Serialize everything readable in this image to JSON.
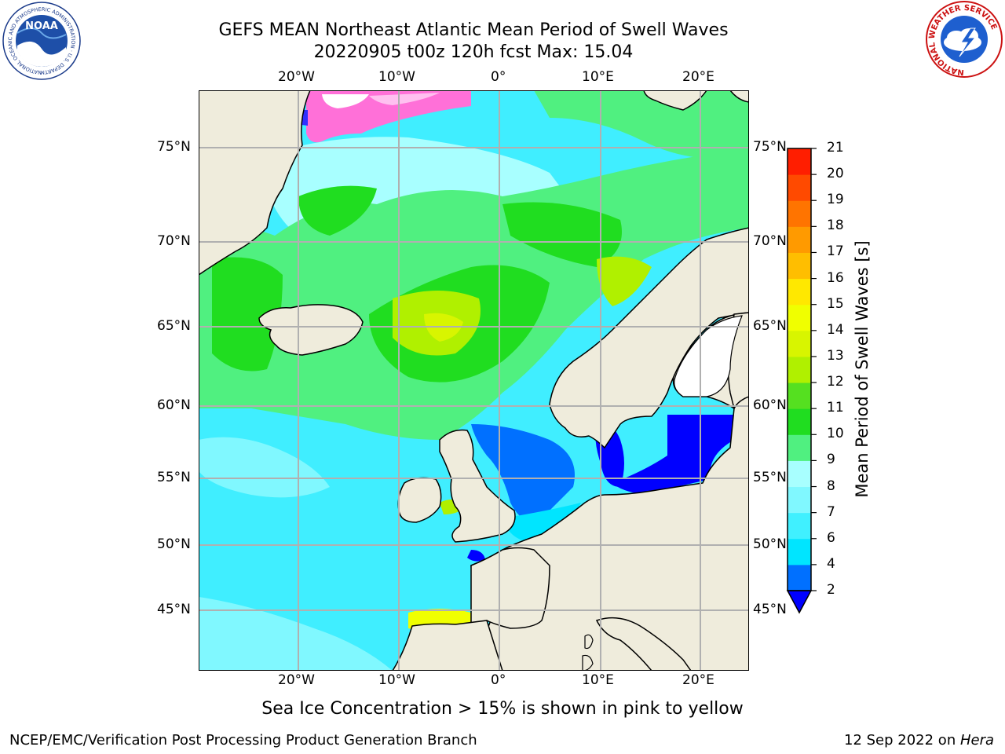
{
  "header": {
    "title_line1": "GEFS MEAN Northeast Atlantic Mean Period of Swell Waves",
    "title_line2": "20220905 t00z 120h fcst   Max: 15.04"
  },
  "logos": {
    "left": {
      "name": "noaa-logo",
      "text": "NOAA",
      "ring_text": "NATIONAL OCEANIC AND ATMOSPHERIC ADMINISTRATION · U.S. DEPARTMENT OF COMMERCE"
    },
    "right": {
      "name": "nws-logo",
      "ring_text": "NATIONAL WEATHER SERVICE"
    }
  },
  "map": {
    "lon_labels": [
      "20°W",
      "10°W",
      "0°",
      "10°E",
      "20°E"
    ],
    "lat_labels": [
      "75°N",
      "70°N",
      "65°N",
      "60°N",
      "55°N",
      "50°N",
      "45°N"
    ],
    "colors": {
      "land": "#efecdc",
      "frame": "#000000",
      "grid": "#b0b0b0"
    }
  },
  "colorbar": {
    "title": "Mean Period of Swell Waves [s]",
    "ticks": [
      "2",
      "4",
      "6",
      "7",
      "8",
      "9",
      "10",
      "11",
      "12",
      "13",
      "14",
      "15",
      "16",
      "17",
      "18",
      "19",
      "20",
      "21"
    ],
    "colors": [
      "#0070ff",
      "#00e5ff",
      "#40f0ff",
      "#80f8ff",
      "#a8ffff",
      "#50f080",
      "#20dd20",
      "#55e020",
      "#b0f000",
      "#d8f500",
      "#f0ff00",
      "#ffe800",
      "#ffbe00",
      "#ff9a00",
      "#ff7400",
      "#ff4a00",
      "#ff1e00"
    ],
    "under_color": "#0000ff"
  },
  "caption": "Sea Ice Concentration > 15% is shown in pink to yellow",
  "footer": {
    "left": "NCEP/EMC/Verification Post Processing Product Generation Branch",
    "right_prefix": "12 Sep 2022 on ",
    "right_host": "Hera"
  }
}
